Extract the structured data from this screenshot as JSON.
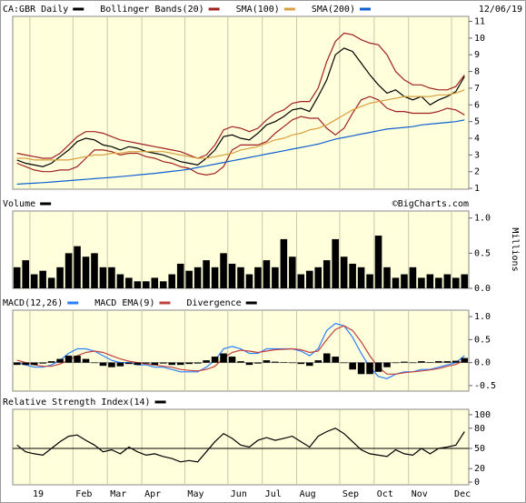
{
  "chart_data": [
    {
      "type": "line",
      "date": "12/06/19",
      "ylim": [
        0.95,
        11.3
      ],
      "yticks": [
        1,
        2,
        3,
        4,
        5,
        6,
        7,
        8,
        9,
        10,
        11
      ],
      "series": [
        {
          "name": "CA:GBR Daily",
          "color": "#000000",
          "values": [
            2.7,
            2.5,
            2.4,
            2.3,
            2.5,
            2.9,
            3.3,
            3.8,
            4.0,
            3.9,
            3.6,
            3.5,
            3.3,
            3.5,
            3.4,
            3.2,
            3.1,
            3.0,
            2.8,
            2.6,
            2.5,
            2.4,
            2.8,
            3.3,
            4.1,
            4.2,
            4.0,
            3.9,
            4.3,
            4.8,
            5.0,
            5.3,
            5.7,
            5.8,
            5.6,
            6.5,
            7.5,
            9.0,
            9.4,
            9.2,
            8.5,
            7.8,
            7.2,
            6.7,
            6.9,
            6.5,
            6.3,
            6.5,
            6.0,
            6.3,
            6.5,
            6.8,
            7.7
          ]
        },
        {
          "name": "Bollinger Bands(20)",
          "color": "#a02020",
          "upper": [
            3.1,
            3.0,
            2.9,
            2.8,
            2.8,
            3.1,
            3.6,
            4.1,
            4.4,
            4.4,
            4.3,
            4.1,
            3.9,
            3.8,
            3.7,
            3.6,
            3.5,
            3.4,
            3.3,
            3.2,
            3.0,
            2.8,
            3.0,
            3.6,
            4.5,
            4.7,
            4.6,
            4.4,
            4.6,
            5.1,
            5.5,
            5.7,
            6.1,
            6.2,
            6.2,
            7.0,
            8.6,
            9.8,
            10.3,
            10.2,
            9.9,
            9.7,
            9.6,
            9.0,
            8.0,
            7.5,
            7.2,
            7.2,
            7.0,
            6.9,
            6.9,
            7.1,
            7.8
          ],
          "lower": [
            2.5,
            2.3,
            2.1,
            2.0,
            2.0,
            2.1,
            2.1,
            2.3,
            2.8,
            3.3,
            3.3,
            3.2,
            3.0,
            3.1,
            3.1,
            2.9,
            2.8,
            2.6,
            2.5,
            2.3,
            2.2,
            1.9,
            1.8,
            1.9,
            2.3,
            3.3,
            3.6,
            3.6,
            3.6,
            3.8,
            4.3,
            4.7,
            5.1,
            5.3,
            5.2,
            5.2,
            4.6,
            4.2,
            4.6,
            5.5,
            6.3,
            6.5,
            6.3,
            5.8,
            5.6,
            5.6,
            5.5,
            5.5,
            5.5,
            5.6,
            5.8,
            5.7,
            5.4
          ]
        },
        {
          "name": "SMA(100)",
          "color": "#d8a040",
          "values": [
            2.8,
            2.8,
            2.7,
            2.7,
            2.7,
            2.7,
            2.7,
            2.8,
            2.9,
            3.0,
            3.0,
            3.1,
            3.1,
            3.2,
            3.2,
            3.2,
            3.2,
            3.2,
            3.1,
            3.0,
            2.9,
            2.8,
            2.8,
            2.9,
            3.0,
            3.1,
            3.3,
            3.4,
            3.5,
            3.7,
            3.9,
            4.0,
            4.2,
            4.3,
            4.5,
            4.6,
            4.8,
            5.1,
            5.4,
            5.7,
            5.9,
            6.1,
            6.2,
            6.3,
            6.4,
            6.5,
            6.5,
            6.5,
            6.5,
            6.6,
            6.6,
            6.7,
            6.9
          ]
        },
        {
          "name": "SMA(200)",
          "color": "#1060d0",
          "values": [
            1.25,
            1.28,
            1.31,
            1.34,
            1.38,
            1.42,
            1.46,
            1.5,
            1.54,
            1.58,
            1.62,
            1.66,
            1.7,
            1.75,
            1.8,
            1.85,
            1.9,
            1.96,
            2.02,
            2.08,
            2.15,
            2.25,
            2.35,
            2.45,
            2.55,
            2.65,
            2.75,
            2.85,
            2.95,
            3.05,
            3.15,
            3.25,
            3.35,
            3.45,
            3.55,
            3.65,
            3.8,
            3.95,
            4.05,
            4.15,
            4.25,
            4.35,
            4.45,
            4.55,
            4.6,
            4.65,
            4.7,
            4.8,
            4.85,
            4.9,
            4.95,
            5.0,
            5.1
          ]
        }
      ]
    },
    {
      "type": "bar",
      "annotation": "©BigCharts.com",
      "y_label": "Millions",
      "ylim": [
        0,
        1.1
      ],
      "yticks": [
        {
          "value": 0,
          "label": "0.0"
        },
        {
          "value": 0.5,
          "label": "0.5"
        },
        {
          "value": 1,
          "label": "1.0"
        }
      ],
      "series": [
        {
          "name": "Volume",
          "color": "#000000",
          "values": [
            0.3,
            0.4,
            0.2,
            0.25,
            0.15,
            0.3,
            0.5,
            0.6,
            0.45,
            0.5,
            0.3,
            0.3,
            0.2,
            0.15,
            0.1,
            0.1,
            0.15,
            0.1,
            0.2,
            0.35,
            0.25,
            0.3,
            0.4,
            0.3,
            0.5,
            0.35,
            0.3,
            0.2,
            0.3,
            0.4,
            0.3,
            0.7,
            0.45,
            0.2,
            0.25,
            0.3,
            0.4,
            0.7,
            0.45,
            0.35,
            0.3,
            0.2,
            0.75,
            0.3,
            0.15,
            0.2,
            0.3,
            0.15,
            0.2,
            0.15,
            0.2,
            0.15,
            0.2
          ]
        }
      ]
    },
    {
      "type": "line",
      "ylim": [
        -0.62,
        1.14
      ],
      "yticks": [
        {
          "value": -0.5,
          "label": "-0.5"
        },
        {
          "value": 0,
          "label": "0.0"
        },
        {
          "value": 0.5,
          "label": "0.5"
        },
        {
          "value": 1,
          "label": "1.0"
        }
      ],
      "reference_lines": [
        0
      ],
      "series": [
        {
          "name": "MACD(12,26)",
          "color": "#2a7fff",
          "values": [
            0.0,
            -0.05,
            -0.1,
            -0.1,
            -0.05,
            0.05,
            0.2,
            0.3,
            0.3,
            0.25,
            0.15,
            0.05,
            0.0,
            0.0,
            -0.05,
            -0.05,
            -0.1,
            -0.1,
            -0.15,
            -0.2,
            -0.2,
            -0.2,
            -0.1,
            0.05,
            0.3,
            0.35,
            0.3,
            0.2,
            0.2,
            0.3,
            0.3,
            0.3,
            0.3,
            0.25,
            0.15,
            0.3,
            0.7,
            0.85,
            0.8,
            0.55,
            0.2,
            -0.1,
            -0.3,
            -0.35,
            -0.25,
            -0.2,
            -0.2,
            -0.15,
            -0.15,
            -0.1,
            -0.05,
            0.0,
            0.15
          ]
        },
        {
          "name": "MACD EMA(9)",
          "color": "#c04040",
          "values": [
            0.05,
            0.0,
            -0.05,
            -0.08,
            -0.08,
            -0.03,
            0.05,
            0.15,
            0.22,
            0.25,
            0.22,
            0.15,
            0.08,
            0.03,
            0.0,
            -0.03,
            -0.05,
            -0.08,
            -0.1,
            -0.15,
            -0.17,
            -0.18,
            -0.15,
            -0.08,
            0.1,
            0.22,
            0.27,
            0.25,
            0.22,
            0.25,
            0.28,
            0.29,
            0.3,
            0.28,
            0.22,
            0.25,
            0.5,
            0.72,
            0.8,
            0.7,
            0.45,
            0.15,
            -0.1,
            -0.25,
            -0.25,
            -0.22,
            -0.2,
            -0.18,
            -0.16,
            -0.13,
            -0.08,
            -0.04,
            0.05
          ]
        },
        {
          "name": "Divergence",
          "color": "#000000",
          "kind": "bar",
          "values": [
            -0.05,
            -0.05,
            -0.05,
            -0.02,
            0.03,
            0.08,
            0.15,
            0.15,
            0.08,
            0.0,
            -0.07,
            -0.1,
            -0.08,
            -0.03,
            -0.05,
            -0.02,
            -0.05,
            -0.02,
            -0.05,
            -0.05,
            -0.03,
            -0.02,
            0.05,
            0.13,
            0.2,
            0.13,
            0.03,
            -0.05,
            -0.02,
            0.05,
            0.02,
            0.01,
            0.0,
            -0.03,
            -0.07,
            0.05,
            0.2,
            0.13,
            0.0,
            -0.15,
            -0.25,
            -0.25,
            -0.2,
            -0.1,
            0.0,
            0.02,
            0.0,
            0.03,
            0.01,
            0.03,
            0.03,
            0.04,
            0.1
          ]
        }
      ]
    },
    {
      "type": "line",
      "ylim": [
        -4,
        108
      ],
      "yticks": [
        0,
        20,
        50,
        80,
        100
      ],
      "reference_lines": [
        50
      ],
      "categories": [
        null,
        null,
        "19",
        null,
        null,
        null,
        null,
        "Feb",
        null,
        null,
        null,
        "Mar",
        null,
        null,
        null,
        "Apr",
        null,
        null,
        null,
        null,
        "May",
        null,
        null,
        null,
        null,
        "Jun",
        null,
        null,
        null,
        "Jul",
        null,
        null,
        null,
        "Aug",
        null,
        null,
        null,
        null,
        "Sep",
        null,
        null,
        null,
        "Oct",
        null,
        null,
        null,
        "Nov",
        null,
        null,
        null,
        null,
        "Dec",
        null
      ],
      "series": [
        {
          "name": "Relative Strength Index(14)",
          "color": "#000000",
          "values": [
            55,
            45,
            42,
            40,
            50,
            60,
            68,
            70,
            62,
            55,
            45,
            48,
            42,
            52,
            45,
            40,
            42,
            38,
            35,
            30,
            32,
            30,
            45,
            60,
            72,
            65,
            55,
            52,
            62,
            66,
            62,
            65,
            68,
            60,
            52,
            68,
            75,
            80,
            72,
            60,
            48,
            42,
            40,
            38,
            48,
            42,
            40,
            50,
            42,
            50,
            52,
            55,
            75
          ]
        }
      ]
    }
  ]
}
